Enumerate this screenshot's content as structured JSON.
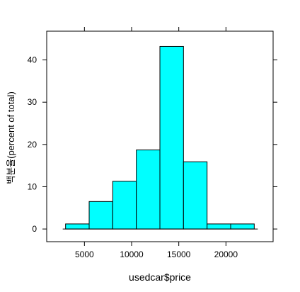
{
  "chart_data": {
    "type": "bar",
    "subtype": "histogram",
    "xlabel": "usedcar$price",
    "ylabel": "백분율(percent of total)",
    "bins": [
      {
        "start": 3000,
        "end": 5500,
        "value": 1.2
      },
      {
        "start": 5500,
        "end": 8000,
        "value": 6.5
      },
      {
        "start": 8000,
        "end": 10500,
        "value": 11.3
      },
      {
        "start": 10500,
        "end": 13000,
        "value": 18.7
      },
      {
        "start": 13000,
        "end": 15500,
        "value": 43.2
      },
      {
        "start": 15500,
        "end": 18000,
        "value": 15.9
      },
      {
        "start": 18000,
        "end": 20500,
        "value": 1.2
      },
      {
        "start": 20500,
        "end": 23000,
        "value": 1.2
      }
    ],
    "xticks": [
      5000,
      10000,
      15000,
      20000
    ],
    "yticks": [
      0,
      10,
      20,
      30,
      40
    ],
    "xlim": [
      1000,
      25000
    ],
    "ylim": [
      -3.0,
      46.8
    ],
    "baseline_range": [
      3000,
      23000
    ],
    "colors": {
      "bar_fill": "#00FFFF",
      "bar_stroke": "#000000",
      "axis": "#000000",
      "background": "#FFFFFF"
    },
    "grid": false,
    "legend": "none"
  }
}
